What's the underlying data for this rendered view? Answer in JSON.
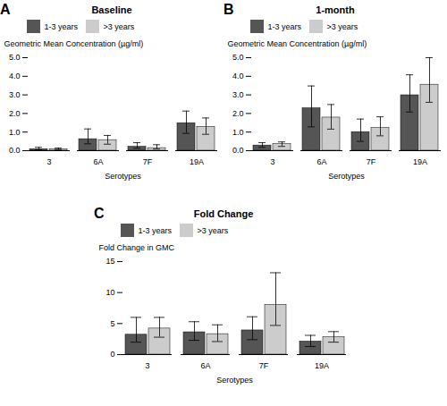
{
  "chart_data": [
    {
      "type": "bar",
      "title": "Baseline",
      "annotations": [
        "A"
      ],
      "categories": [
        "3",
        "6A",
        "7F",
        "19A"
      ],
      "xlabel": "Serotypes",
      "ylabel": "Geometric Mean Concentration (µg/ml)",
      "ylim": [
        0,
        5
      ],
      "yticks": [
        0,
        1,
        2,
        3,
        4,
        5
      ],
      "grid": false,
      "legend": "upper left",
      "series": [
        {
          "name": "1-3 years",
          "color": "#555555",
          "values": [
            0.08,
            0.62,
            0.21,
            1.48
          ],
          "err_low": [
            0.04,
            0.25,
            0.08,
            0.55
          ],
          "err_high": [
            0.1,
            0.55,
            0.22,
            0.65
          ]
        },
        {
          "name": ">3 years",
          "color": "#cccccc",
          "values": [
            0.08,
            0.57,
            0.14,
            1.28
          ],
          "err_low": [
            0.04,
            0.22,
            0.05,
            0.4
          ],
          "err_high": [
            0.06,
            0.25,
            0.18,
            0.48
          ]
        }
      ]
    },
    {
      "type": "bar",
      "title": "1-month",
      "annotations": [
        "B"
      ],
      "categories": [
        "3",
        "6A",
        "7F",
        "19A"
      ],
      "xlabel": "Serotypes",
      "ylabel": "Geometric Mean Concentration (µg/ml)",
      "ylim": [
        0,
        5
      ],
      "yticks": [
        0,
        1,
        2,
        3,
        4,
        5
      ],
      "grid": false,
      "legend": "upper left",
      "series": [
        {
          "name": "1-3 years",
          "color": "#555555",
          "values": [
            0.28,
            2.28,
            1.0,
            2.98
          ],
          "err_low": [
            0.1,
            1.0,
            0.5,
            0.9
          ],
          "err_high": [
            0.15,
            1.2,
            0.7,
            1.1
          ]
        },
        {
          "name": ">3 years",
          "color": "#cccccc",
          "values": [
            0.35,
            1.78,
            1.22,
            3.55
          ],
          "err_low": [
            0.12,
            0.62,
            0.42,
            0.95
          ],
          "err_high": [
            0.12,
            0.7,
            0.6,
            1.45
          ]
        }
      ]
    },
    {
      "type": "bar",
      "title": "Fold Change",
      "annotations": [
        "C"
      ],
      "categories": [
        "3",
        "6A",
        "7F",
        "19A"
      ],
      "xlabel": "Serotypes",
      "ylabel": "Fold Change in GMC",
      "ylim": [
        0,
        15
      ],
      "yticks": [
        0,
        5,
        10,
        15
      ],
      "grid": false,
      "legend": "upper left",
      "series": [
        {
          "name": "1-3 years",
          "color": "#555555",
          "values": [
            3.2,
            3.6,
            3.9,
            2.1
          ],
          "err_low": [
            1.2,
            1.3,
            1.5,
            0.8
          ],
          "err_high": [
            2.8,
            1.7,
            2.2,
            1.0
          ]
        },
        {
          "name": ">3 years",
          "color": "#cccccc",
          "values": [
            4.2,
            3.3,
            8.0,
            2.8
          ],
          "err_low": [
            1.4,
            1.2,
            3.3,
            0.8
          ],
          "err_high": [
            1.8,
            1.5,
            5.2,
            0.9
          ]
        }
      ]
    }
  ]
}
